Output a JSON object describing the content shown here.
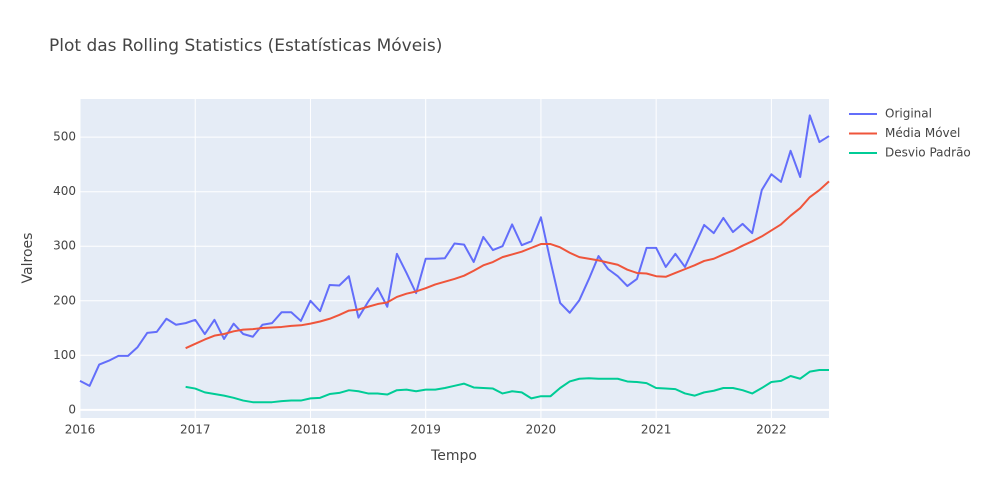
{
  "chart_data": {
    "type": "line",
    "title": "Plot das Rolling Statistics (Estatísticas Móveis)",
    "x_label": "Tempo",
    "y_label": "Valroes",
    "x": [
      "2016-01",
      "2016-02",
      "2016-03",
      "2016-04",
      "2016-05",
      "2016-06",
      "2016-07",
      "2016-08",
      "2016-09",
      "2016-10",
      "2016-11",
      "2016-12",
      "2017-01",
      "2017-02",
      "2017-03",
      "2017-04",
      "2017-05",
      "2017-06",
      "2017-07",
      "2017-08",
      "2017-09",
      "2017-10",
      "2017-11",
      "2017-12",
      "2018-01",
      "2018-02",
      "2018-03",
      "2018-04",
      "2018-05",
      "2018-06",
      "2018-07",
      "2018-08",
      "2018-09",
      "2018-10",
      "2018-11",
      "2018-12",
      "2019-01",
      "2019-02",
      "2019-03",
      "2019-04",
      "2019-05",
      "2019-06",
      "2019-07",
      "2019-08",
      "2019-09",
      "2019-10",
      "2019-11",
      "2019-12",
      "2020-01",
      "2020-02",
      "2020-03",
      "2020-04",
      "2020-05",
      "2020-06",
      "2020-07",
      "2020-08",
      "2020-09",
      "2020-10",
      "2020-11",
      "2020-12",
      "2021-01",
      "2021-02",
      "2021-03",
      "2021-04",
      "2021-05",
      "2021-06",
      "2021-07",
      "2021-08",
      "2021-09",
      "2021-10",
      "2021-11",
      "2021-12",
      "2022-01",
      "2022-02",
      "2022-03",
      "2022-04",
      "2022-05",
      "2022-06",
      "2022-07"
    ],
    "series": [
      {
        "name": "Original",
        "color": "#636efa",
        "values": [
          53,
          44,
          83,
          90,
          99,
          99,
          115,
          141,
          143,
          167,
          156,
          159,
          165,
          139,
          165,
          130,
          158,
          139,
          134,
          156,
          159,
          179,
          179,
          163,
          200,
          181,
          229,
          228,
          245,
          169,
          198,
          223,
          189,
          286,
          251,
          214,
          277,
          277,
          278,
          305,
          303,
          271,
          317,
          293,
          300,
          340,
          302,
          309,
          353,
          272,
          196,
          178,
          201,
          240,
          282,
          258,
          245,
          227,
          240,
          297,
          297,
          262,
          286,
          262,
          300,
          339,
          324,
          352,
          326,
          341,
          324,
          403,
          432,
          418,
          475,
          427,
          540,
          491,
          502
        ]
      },
      {
        "name": "Média Móvel",
        "color": "#ef553b",
        "values": [
          null,
          null,
          null,
          null,
          null,
          null,
          null,
          null,
          null,
          null,
          null,
          113,
          121,
          129,
          136,
          139,
          144,
          147,
          148,
          150,
          151,
          152,
          154,
          155,
          158,
          162,
          167,
          174,
          182,
          184,
          189,
          194,
          197,
          207,
          213,
          217,
          223,
          230,
          235,
          240,
          246,
          255,
          265,
          271,
          280,
          285,
          290,
          297,
          304,
          304,
          298,
          288,
          280,
          277,
          274,
          270,
          266,
          257,
          251,
          250,
          245,
          244,
          251,
          258,
          265,
          273,
          277,
          285,
          292,
          301,
          309,
          318,
          329,
          340,
          356,
          370,
          390,
          403,
          419
        ]
      },
      {
        "name": "Desvio Padrão",
        "color": "#00cc96",
        "values": [
          null,
          null,
          null,
          null,
          null,
          null,
          null,
          null,
          null,
          null,
          null,
          42,
          39,
          32,
          29,
          26,
          22,
          17,
          14,
          14,
          14,
          16,
          17,
          17,
          21,
          22,
          29,
          31,
          36,
          34,
          30,
          30,
          28,
          36,
          37,
          34,
          37,
          37,
          40,
          44,
          48,
          41,
          40,
          39,
          30,
          34,
          32,
          21,
          25,
          25,
          40,
          52,
          57,
          58,
          57,
          57,
          57,
          52,
          51,
          49,
          40,
          39,
          38,
          30,
          26,
          32,
          35,
          40,
          40,
          36,
          30,
          40,
          51,
          53,
          62,
          57,
          70,
          73,
          73
        ]
      }
    ],
    "xlim": [
      "2016-01",
      "2022-07"
    ],
    "xticks": [
      {
        "value": "2016-01",
        "label": "2016"
      },
      {
        "value": "2017-01",
        "label": "2017"
      },
      {
        "value": "2018-01",
        "label": "2018"
      },
      {
        "value": "2019-01",
        "label": "2019"
      },
      {
        "value": "2020-01",
        "label": "2020"
      },
      {
        "value": "2021-01",
        "label": "2021"
      },
      {
        "value": "2022-01",
        "label": "2022"
      }
    ],
    "ylim": [
      -15,
      570
    ],
    "yticks": [
      0,
      100,
      200,
      300,
      400,
      500
    ],
    "grid": true,
    "legend": "right"
  }
}
